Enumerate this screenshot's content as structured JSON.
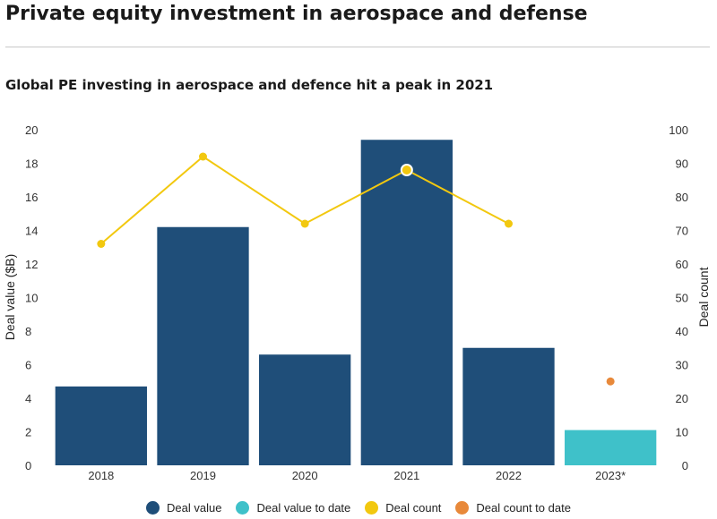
{
  "header": {
    "title": "Private equity investment in aerospace and defense"
  },
  "chart_data": {
    "type": "bar",
    "title": "Global PE investing in aerospace and defence hit a peak in 2021",
    "categories": [
      "2018",
      "2019",
      "2020",
      "2021",
      "2022",
      "2023*"
    ],
    "ylabel": "Deal value ($B)",
    "y2label": "Deal count",
    "ylim": [
      0,
      20
    ],
    "y2lim": [
      0,
      100
    ],
    "yticks": [
      "0",
      "2",
      "4",
      "6",
      "8",
      "10",
      "12",
      "14",
      "16",
      "18",
      "20"
    ],
    "y2ticks": [
      "0",
      "10",
      "20",
      "30",
      "40",
      "50",
      "60",
      "70",
      "80",
      "90",
      "100"
    ],
    "grid": false,
    "legend_position": "bottom",
    "series": [
      {
        "name": "Deal value",
        "kind": "bar",
        "axis": "left",
        "color": "#1f4e79",
        "values": [
          4.7,
          14.2,
          6.6,
          19.4,
          7.0,
          null
        ]
      },
      {
        "name": "Deal value to date",
        "kind": "bar",
        "axis": "left",
        "color": "#3fc1c9",
        "values": [
          null,
          null,
          null,
          null,
          null,
          2.1
        ]
      },
      {
        "name": "Deal count",
        "kind": "line",
        "axis": "right",
        "color": "#f2c80f",
        "values": [
          66,
          92,
          72,
          88,
          72,
          null
        ],
        "highlight_index": 3
      },
      {
        "name": "Deal count to date",
        "kind": "point",
        "axis": "right",
        "color": "#e8893a",
        "values": [
          null,
          null,
          null,
          null,
          null,
          25
        ]
      }
    ]
  }
}
